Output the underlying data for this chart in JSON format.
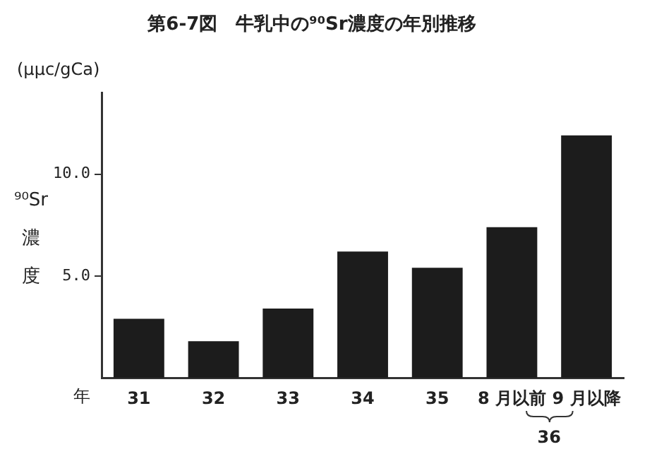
{
  "chart_data": {
    "type": "bar",
    "title": "第6-7図　牛乳中の⁹⁰Sr濃度の年別推移",
    "xlabel": "年",
    "ylabel": "⁹⁰Sr 濃度",
    "categories": [
      "31",
      "32",
      "33",
      "34",
      "35",
      "8 月以前",
      "9 月以降"
    ],
    "values": [
      2.9,
      1.8,
      3.4,
      6.2,
      5.4,
      7.4,
      11.9
    ],
    "color": "#1c1c1c",
    "ylim": [
      0,
      14
    ],
    "yticks": [
      {
        "value": 5,
        "label": "5.0"
      },
      {
        "value": 10,
        "label": "10.0"
      }
    ],
    "grid": false,
    "legend": false,
    "annotations": [
      "(μμc/gCa)",
      "36"
    ]
  }
}
